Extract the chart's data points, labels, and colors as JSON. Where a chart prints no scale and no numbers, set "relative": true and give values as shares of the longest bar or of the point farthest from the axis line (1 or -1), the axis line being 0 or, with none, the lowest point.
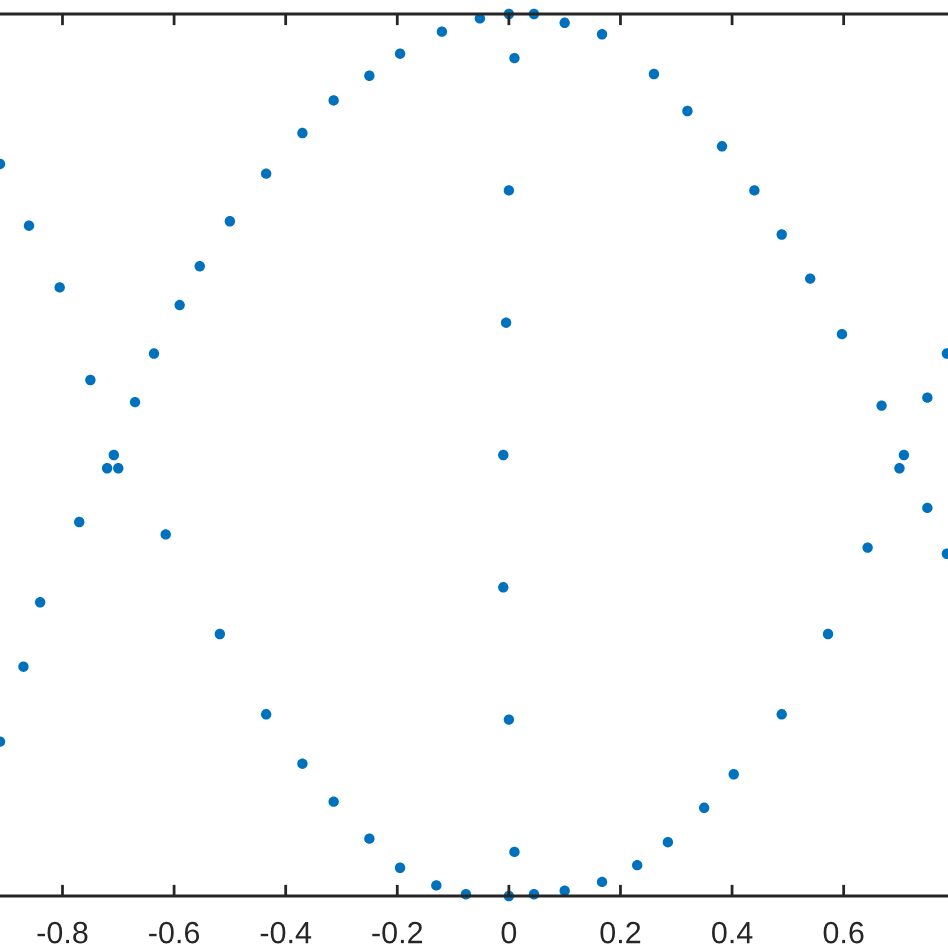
{
  "chart_data": {
    "type": "scatter",
    "relative": true,
    "color": "#0072bd",
    "marker": "circle",
    "tick_labels": "x",
    "xlim": [
      -0.912,
      0.787
    ],
    "xticks": [
      -0.8,
      -0.6,
      -0.4,
      -0.2,
      0,
      0.2,
      0.4,
      0.6
    ],
    "x": [
      -0.708,
      -0.67,
      -0.636,
      -0.59,
      -0.554,
      -0.5,
      -0.435,
      -0.37,
      -0.314,
      -0.25,
      -0.195,
      -0.12,
      -0.052,
      0.0,
      0.045,
      0.1,
      0.167,
      0.26,
      0.32,
      0.382,
      0.44,
      0.489,
      0.54,
      0.597,
      0.668,
      0.708,
      -0.7,
      -0.615,
      -0.518,
      -0.435,
      -0.37,
      -0.314,
      -0.25,
      -0.195,
      -0.13,
      -0.077,
      0.0,
      0.045,
      0.1,
      0.167,
      0.23,
      0.285,
      0.35,
      0.403,
      0.489,
      0.572,
      0.643,
      0.7,
      -0.912,
      -0.86,
      -0.805,
      -0.75,
      -0.912,
      -0.87,
      -0.84,
      -0.77,
      -0.72,
      0.75,
      0.785,
      0.75,
      0.785,
      0.01,
      0.0,
      -0.01,
      -0.01,
      -0.005,
      0.0,
      0.01
    ],
    "values": [
      0.5,
      0.56,
      0.615,
      0.67,
      0.714,
      0.765,
      0.819,
      0.865,
      0.902,
      0.93,
      0.955,
      0.98,
      0.995,
      1.0,
      1.0,
      0.99,
      0.977,
      0.932,
      0.89,
      0.85,
      0.8,
      0.75,
      0.7,
      0.637,
      0.556,
      0.5,
      0.485,
      0.41,
      0.297,
      0.206,
      0.15,
      0.107,
      0.065,
      0.032,
      0.012,
      0.002,
      0.0,
      0.002,
      0.006,
      0.016,
      0.035,
      0.061,
      0.1,
      0.138,
      0.206,
      0.297,
      0.395,
      0.485,
      0.83,
      0.76,
      0.69,
      0.585,
      0.175,
      0.26,
      0.333,
      0.424,
      0.485,
      0.565,
      0.615,
      0.44,
      0.388,
      0.05,
      0.2,
      0.35,
      0.5,
      0.65,
      0.8,
      0.95
    ]
  }
}
